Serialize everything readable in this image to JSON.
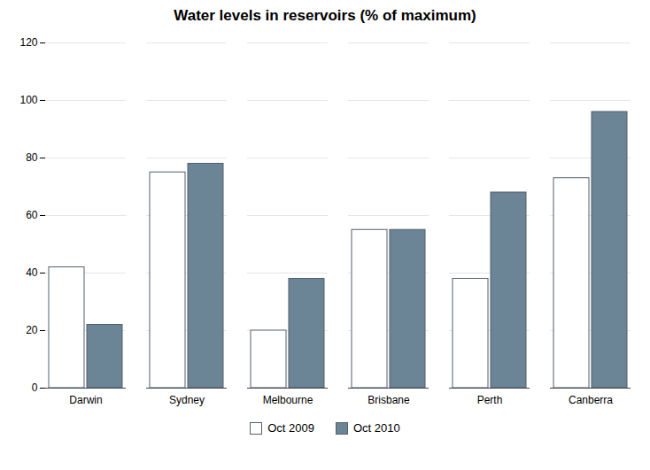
{
  "chart_data": {
    "type": "bar",
    "title": "Water levels in reservoirs (% of maximum)",
    "categories": [
      "Darwin",
      "Sydney",
      "Melbourne",
      "Brisbane",
      "Perth",
      "Canberra"
    ],
    "series": [
      {
        "name": "Oct 2009",
        "color": "#ffffff",
        "values": [
          42,
          75,
          20,
          55,
          38,
          73
        ]
      },
      {
        "name": "Oct 2010",
        "color": "#6b8496",
        "values": [
          22,
          78,
          38,
          55,
          68,
          96
        ]
      }
    ],
    "ylim": [
      0,
      120
    ],
    "yticks": [
      0,
      20,
      40,
      60,
      80,
      100,
      120
    ],
    "grid": true,
    "legend": "bottom"
  }
}
